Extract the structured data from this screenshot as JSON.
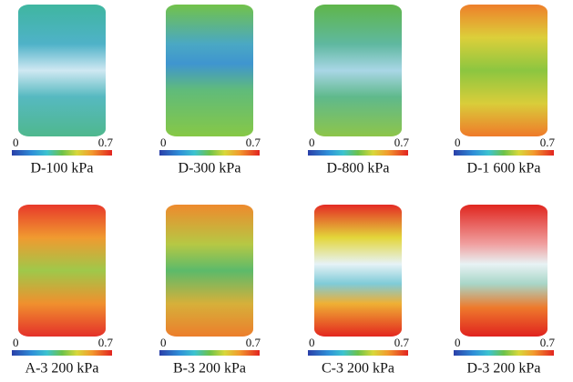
{
  "panels": [
    {
      "label": "D-100 kPa",
      "scale_min": 0,
      "scale_max": 0.7
    },
    {
      "label": "D-300 kPa",
      "scale_min": 0,
      "scale_max": 0.7
    },
    {
      "label": "D-800 kPa",
      "scale_min": 0,
      "scale_max": 0.7
    },
    {
      "label": "D-1 600 kPa",
      "scale_min": 0,
      "scale_max": 0.7
    },
    {
      "label": "A-3 200 kPa",
      "scale_min": 0,
      "scale_max": 0.7
    },
    {
      "label": "B-3 200 kPa",
      "scale_min": 0,
      "scale_max": 0.7
    },
    {
      "label": "C-3 200 kPa",
      "scale_min": 0,
      "scale_max": 0.7
    },
    {
      "label": "D-3 200 kPa",
      "scale_min": 0,
      "scale_max": 0.7
    }
  ]
}
